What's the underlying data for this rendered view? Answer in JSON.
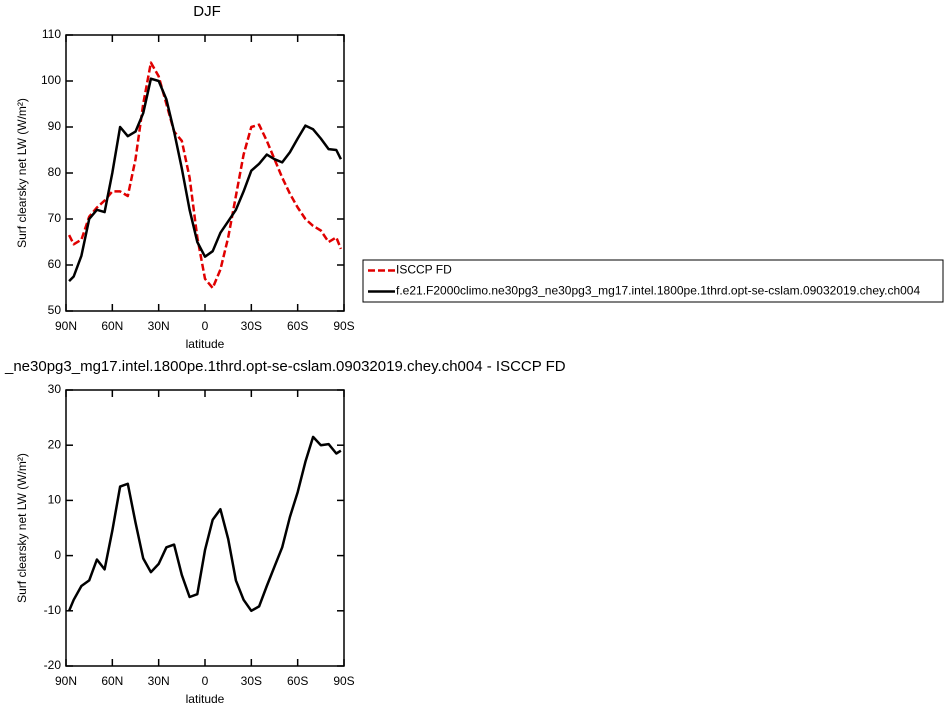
{
  "chart_data": [
    {
      "type": "line",
      "title": "DJF",
      "xlabel": "latitude",
      "ylabel": "Surf clearsky net LW (W/m²)",
      "x": [
        88,
        85,
        80,
        75,
        70,
        65,
        60,
        55,
        50,
        45,
        40,
        35,
        30,
        25,
        20,
        15,
        10,
        5,
        0,
        -5,
        -10,
        -15,
        -20,
        -25,
        -30,
        -35,
        -40,
        -45,
        -50,
        -55,
        -60,
        -65,
        -70,
        -75,
        -80,
        -85,
        -88
      ],
      "series": [
        {
          "name": "ISCCP FD",
          "color": "#e00000",
          "line_style": "dashed",
          "values": [
            66.5,
            64.5,
            65.5,
            70.5,
            72.5,
            74,
            76,
            76,
            75,
            83,
            95,
            104,
            101,
            95,
            89,
            87,
            79,
            66,
            57,
            55,
            59,
            66,
            75,
            84,
            90,
            90.5,
            87,
            83,
            79,
            75.5,
            72.5,
            70,
            68.5,
            67.5,
            65,
            66,
            63.5
          ]
        },
        {
          "name": "f.e21.F2000climo.ne30pg3_ne30pg3_mg17.intel.1800pe.1thrd.opt-se-cslam.09032019.chey.ch004",
          "color": "#000000",
          "line_style": "solid",
          "values": [
            56.5,
            57.5,
            62,
            70,
            72,
            71.5,
            80,
            90,
            88,
            89,
            93,
            100.5,
            100,
            96,
            89,
            81,
            72,
            65,
            61.8,
            63,
            67,
            69.5,
            72,
            76,
            80.5,
            82,
            84,
            83,
            82.3,
            84.5,
            87.5,
            90.3,
            89.5,
            87.5,
            85.2,
            85,
            83
          ]
        }
      ],
      "xlim": [
        90,
        -90
      ],
      "xticks": [
        {
          "value": 90,
          "label": "90N"
        },
        {
          "value": 60,
          "label": "60N"
        },
        {
          "value": 30,
          "label": "30N"
        },
        0,
        {
          "value": -30,
          "label": "30S"
        },
        {
          "value": -60,
          "label": "60S"
        },
        {
          "value": -90,
          "label": "90S"
        }
      ],
      "ylim": [
        50,
        110
      ],
      "yticks": [
        50,
        60,
        70,
        80,
        90,
        100,
        110
      ],
      "legend": "right"
    },
    {
      "type": "line",
      "title": "_ne30pg3_mg17.intel.1800pe.1thrd.opt-se-cslam.09032019.chey.ch004 - ISCCP FD",
      "xlabel": "latitude",
      "ylabel": "Surf clearsky net LW (W/m²)",
      "x": [
        88,
        85,
        80,
        75,
        70,
        65,
        60,
        55,
        50,
        45,
        40,
        35,
        30,
        25,
        20,
        15,
        10,
        5,
        0,
        -5,
        -10,
        -15,
        -20,
        -25,
        -30,
        -35,
        -40,
        -45,
        -50,
        -55,
        -60,
        -65,
        -70,
        -75,
        -80,
        -85,
        -88
      ],
      "series": [
        {
          "color": "#000000",
          "line_style": "solid",
          "values": [
            -10,
            -8,
            -5.5,
            -4.5,
            -0.7,
            -2.5,
            4.5,
            12.5,
            13,
            6,
            -0.5,
            -3,
            -1.5,
            1.5,
            2,
            -3.5,
            -7.5,
            -7,
            1,
            6.5,
            8.4,
            3,
            -4.5,
            -8,
            -10,
            -9.2,
            -5.5,
            -2,
            1.5,
            7,
            11.5,
            17,
            21.5,
            20,
            20.2,
            18.5,
            19
          ]
        }
      ],
      "xlim": [
        90,
        -90
      ],
      "xticks": [
        {
          "value": 90,
          "label": "90N"
        },
        {
          "value": 60,
          "label": "60N"
        },
        {
          "value": 30,
          "label": "30N"
        },
        0,
        {
          "value": -30,
          "label": "30S"
        },
        {
          "value": -60,
          "label": "60S"
        },
        {
          "value": -90,
          "label": "90S"
        }
      ],
      "ylim": [
        -20,
        30
      ],
      "yticks": [
        -20,
        -10,
        0,
        10,
        20,
        30
      ]
    }
  ]
}
